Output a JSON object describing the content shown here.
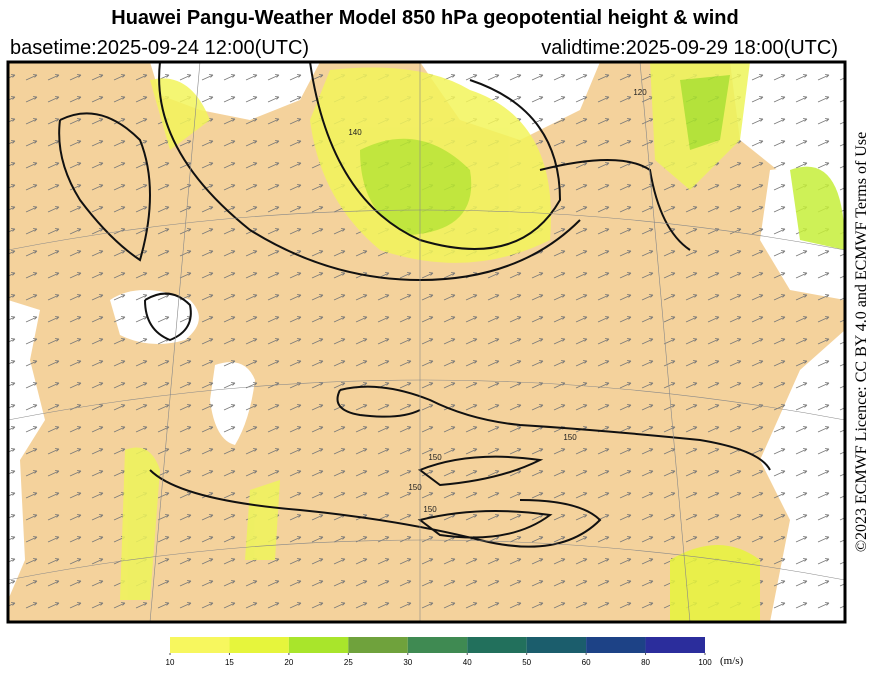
{
  "header": {
    "title": "Huawei Pangu-Weather Model 850 hPa geopotential height & wind",
    "basetime": "basetime:2025-09-24 12:00(UTC)",
    "validtime": "validtime:2025-09-29 18:00(UTC)"
  },
  "credit": "©2023 ECMWF Licence: CC BY 4.0 and ECMWF Terms of Use",
  "map": {
    "contour_labels": [
      "140",
      "120",
      "150",
      "150",
      "150",
      "150"
    ]
  },
  "colorbar": {
    "ticks": [
      10,
      15,
      20,
      25,
      30,
      40,
      50,
      60,
      80,
      100
    ],
    "colors": [
      "#f7f75e",
      "#e6f53c",
      "#a9e52b",
      "#6fa23c",
      "#3f8a52",
      "#22705c",
      "#1b5d6c",
      "#1d4286",
      "#2b2d9c"
    ],
    "unit": "(m/s)"
  }
}
